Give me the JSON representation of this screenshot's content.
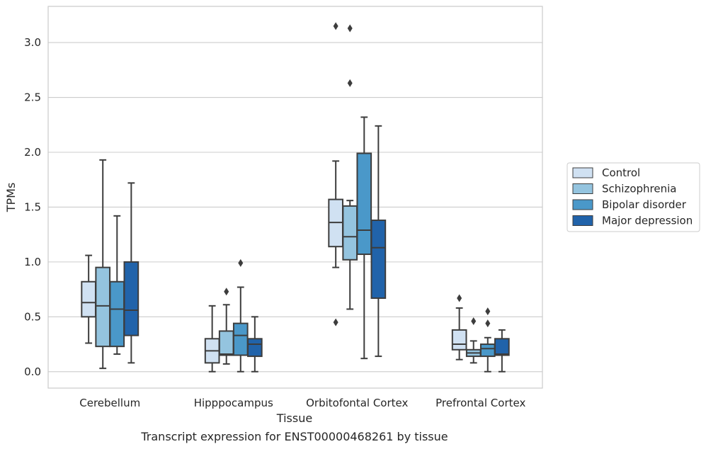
{
  "chart_data": {
    "type": "box",
    "xlabel": "Tissue",
    "ylabel": "TPMs",
    "caption": "Transcript expression for ENST00000468261 by tissue",
    "ylim": [
      -0.15,
      3.33
    ],
    "yticks": [
      "0.0",
      "0.5",
      "1.0",
      "1.5",
      "2.0",
      "2.5",
      "3.0"
    ],
    "grid": "horizontal",
    "legend_position": "right",
    "categories": [
      "Cerebellum",
      "Hipppocampus",
      "Orbitofontal Cortex",
      "Prefrontal Cortex"
    ],
    "series": [
      {
        "name": "Control",
        "color": "#d0e1f2",
        "boxes": [
          {
            "whislo": 0.26,
            "q1": 0.5,
            "med": 0.63,
            "q3": 0.82,
            "whishi": 1.06,
            "fliers": []
          },
          {
            "whislo": 0.0,
            "q1": 0.08,
            "med": 0.19,
            "q3": 0.3,
            "whishi": 0.6,
            "fliers": []
          },
          {
            "whislo": 0.95,
            "q1": 1.14,
            "med": 1.36,
            "q3": 1.57,
            "whishi": 1.92,
            "fliers": [
              0.45,
              3.15
            ]
          },
          {
            "whislo": 0.11,
            "q1": 0.2,
            "med": 0.25,
            "q3": 0.38,
            "whishi": 0.58,
            "fliers": [
              0.67
            ]
          }
        ]
      },
      {
        "name": "Schizophrenia",
        "color": "#94c4df",
        "boxes": [
          {
            "whislo": 0.03,
            "q1": 0.23,
            "med": 0.6,
            "q3": 0.95,
            "whishi": 1.93,
            "fliers": []
          },
          {
            "whislo": 0.07,
            "q1": 0.15,
            "med": 0.16,
            "q3": 0.37,
            "whishi": 0.61,
            "fliers": [
              0.73
            ]
          },
          {
            "whislo": 0.57,
            "q1": 1.02,
            "med": 1.23,
            "q3": 1.51,
            "whishi": 1.56,
            "fliers": [
              2.63,
              3.13
            ]
          },
          {
            "whislo": 0.08,
            "q1": 0.14,
            "med": 0.17,
            "q3": 0.2,
            "whishi": 0.28,
            "fliers": [
              0.46
            ]
          }
        ]
      },
      {
        "name": "Bipolar disorder",
        "color": "#4a98c9",
        "boxes": [
          {
            "whislo": 0.16,
            "q1": 0.23,
            "med": 0.57,
            "q3": 0.82,
            "whishi": 1.42,
            "fliers": []
          },
          {
            "whislo": 0.0,
            "q1": 0.15,
            "med": 0.33,
            "q3": 0.44,
            "whishi": 0.77,
            "fliers": [
              0.99
            ]
          },
          {
            "whislo": 0.12,
            "q1": 1.07,
            "med": 1.29,
            "q3": 1.99,
            "whishi": 2.32,
            "fliers": []
          },
          {
            "whislo": 0.0,
            "q1": 0.14,
            "med": 0.21,
            "q3": 0.25,
            "whishi": 0.31,
            "fliers": [
              0.44,
              0.55
            ]
          }
        ]
      },
      {
        "name": "Major depression",
        "color": "#2163aa",
        "boxes": [
          {
            "whislo": 0.08,
            "q1": 0.33,
            "med": 0.56,
            "q3": 1.0,
            "whishi": 1.72,
            "fliers": []
          },
          {
            "whislo": 0.0,
            "q1": 0.14,
            "med": 0.25,
            "q3": 0.3,
            "whishi": 0.5,
            "fliers": []
          },
          {
            "whislo": 0.14,
            "q1": 0.67,
            "med": 1.13,
            "q3": 1.38,
            "whishi": 2.24,
            "fliers": []
          },
          {
            "whislo": 0.0,
            "q1": 0.15,
            "med": 0.16,
            "q3": 0.3,
            "whishi": 0.38,
            "fliers": []
          }
        ]
      }
    ]
  }
}
